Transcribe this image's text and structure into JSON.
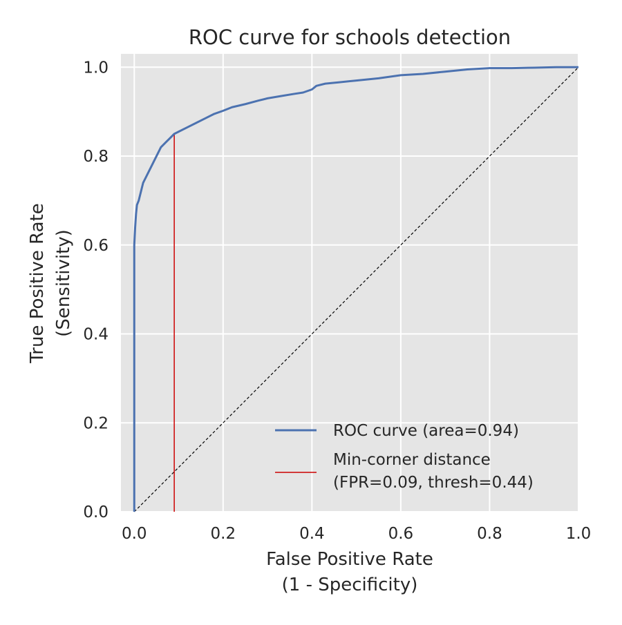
{
  "chart_data": {
    "type": "line",
    "title": "ROC curve for schools detection",
    "xlabel": [
      "False Positive Rate",
      "(1 - Specificity)"
    ],
    "ylabel": [
      "True Positive Rate",
      "(Sensitivity)"
    ],
    "xlim": [
      -0.03,
      1.0
    ],
    "ylim": [
      0.0,
      1.03
    ],
    "x_ticks": [
      0.0,
      0.2,
      0.4,
      0.6,
      0.8,
      1.0
    ],
    "x_tick_labels": [
      "0.0",
      "0.2",
      "0.4",
      "0.6",
      "0.8",
      "1.0"
    ],
    "y_ticks": [
      0.0,
      0.2,
      0.4,
      0.6,
      0.8,
      1.0
    ],
    "y_tick_labels": [
      "0.0",
      "0.2",
      "0.4",
      "0.6",
      "0.8",
      "1.0"
    ],
    "grid": true,
    "background": "#e5e5e5",
    "legend_position": "lower right",
    "series": [
      {
        "name": "ROC curve (area=0.94)",
        "color": "#4c72b0",
        "style": "solid",
        "x": [
          0.0,
          0.0,
          0.0,
          0.0,
          0.002,
          0.004,
          0.006,
          0.01,
          0.015,
          0.02,
          0.03,
          0.04,
          0.05,
          0.06,
          0.07,
          0.08,
          0.09,
          0.1,
          0.12,
          0.14,
          0.16,
          0.18,
          0.2,
          0.22,
          0.25,
          0.28,
          0.3,
          0.33,
          0.36,
          0.38,
          0.4,
          0.41,
          0.43,
          0.46,
          0.5,
          0.55,
          0.6,
          0.65,
          0.7,
          0.75,
          0.8,
          0.85,
          0.9,
          0.95,
          1.0
        ],
        "y": [
          0.0,
          0.33,
          0.5,
          0.6,
          0.64,
          0.67,
          0.69,
          0.7,
          0.72,
          0.74,
          0.76,
          0.78,
          0.8,
          0.82,
          0.83,
          0.84,
          0.85,
          0.855,
          0.865,
          0.875,
          0.885,
          0.895,
          0.902,
          0.91,
          0.917,
          0.925,
          0.93,
          0.935,
          0.94,
          0.943,
          0.95,
          0.958,
          0.963,
          0.966,
          0.97,
          0.975,
          0.982,
          0.985,
          0.99,
          0.995,
          0.998,
          0.998,
          0.999,
          1.0,
          1.0
        ]
      },
      {
        "name": "Min-corner distance\n(FPR=0.09, thresh=0.44)",
        "color": "#cc0000",
        "style": "solid",
        "x": [
          0.09,
          0.09
        ],
        "y": [
          0.0,
          0.85
        ]
      },
      {
        "name": "",
        "color": "#000000",
        "style": "dashed",
        "x": [
          0.0,
          1.0
        ],
        "y": [
          0.0,
          1.0
        ]
      }
    ],
    "legend": [
      {
        "lines": [
          "ROC curve (area=0.94)"
        ],
        "color": "#4c72b0"
      },
      {
        "lines": [
          "Min-corner distance",
          "(FPR=0.09, thresh=0.44)"
        ],
        "color": "#cc0000"
      }
    ]
  }
}
